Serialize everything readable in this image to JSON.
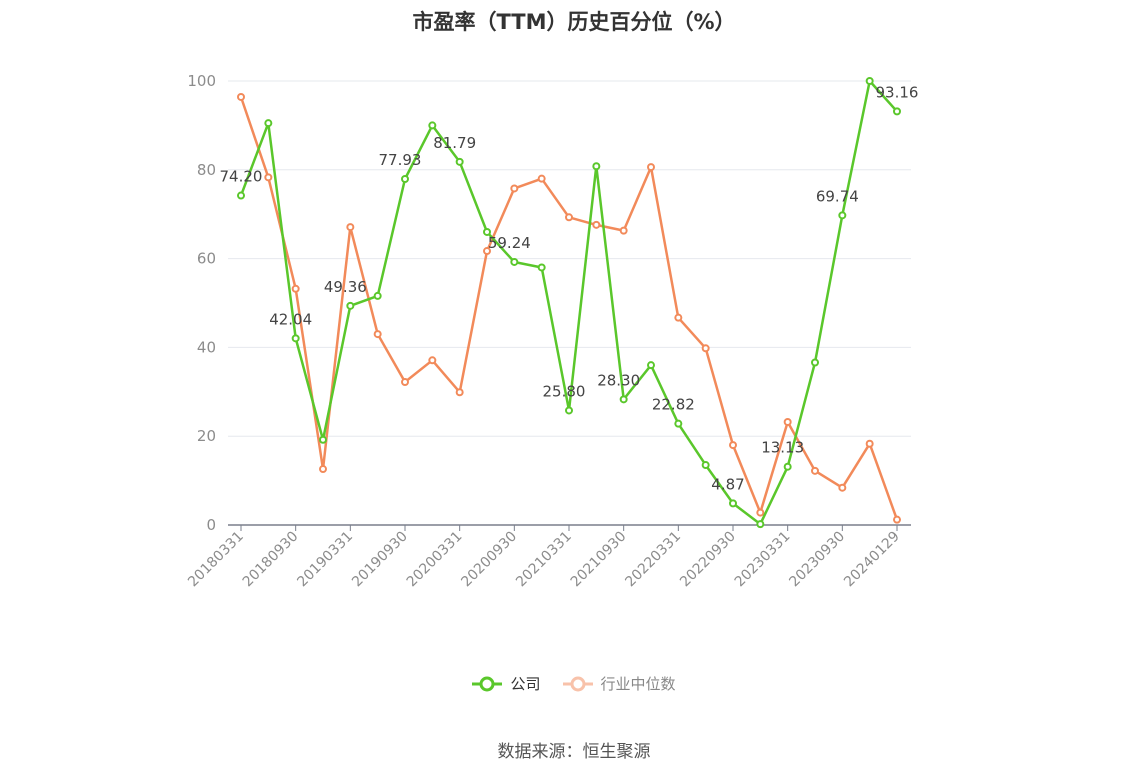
{
  "colors": {
    "company": "#5ac72b",
    "industry": "#f28a5a",
    "grid": "#e6e8ee",
    "axis": "#7a7f8c",
    "tick_text": "#8c8c8c",
    "label_text": "#444444"
  },
  "legend": {
    "company": "公司",
    "industry": "行业中位数"
  },
  "source": "数据来源：恒生聚源",
  "chart_data": {
    "type": "line",
    "title": "市盈率（TTM）历史百分位（%）",
    "xlabel": "",
    "ylabel": "",
    "ylim": [
      0,
      100
    ],
    "yticks": [
      0,
      20,
      40,
      60,
      80,
      100
    ],
    "grid": true,
    "legend_position": "bottom",
    "x": [
      "20180331",
      "20180630",
      "20180930",
      "20181231",
      "20190331",
      "20190630",
      "20190930",
      "20191231",
      "20200331",
      "20200630",
      "20200930",
      "20201231",
      "20210331",
      "20210630",
      "20210930",
      "20211231",
      "20220331",
      "20220630",
      "20220930",
      "20221231",
      "20230331",
      "20230630",
      "20230930",
      "20231231",
      "20240129"
    ],
    "xtick_labels": [
      "20180331",
      "20180930",
      "20190331",
      "20190930",
      "20200331",
      "20200930",
      "20210331",
      "20210930",
      "20220331",
      "20220930",
      "20230331",
      "20230930",
      "20240129"
    ],
    "series": [
      {
        "name": "公司",
        "values": [
          74.2,
          90.5,
          42.04,
          19.2,
          49.36,
          51.6,
          77.93,
          90.0,
          81.79,
          66.0,
          59.24,
          58.0,
          25.8,
          80.8,
          28.3,
          36.0,
          22.82,
          13.5,
          4.87,
          0.2,
          13.13,
          36.6,
          69.74,
          100.0,
          93.16
        ],
        "labels": [
          "74.20",
          "",
          "42.04",
          "",
          "49.36",
          "",
          "77.93",
          "",
          "81.79",
          "",
          "59.24",
          "",
          "25.80",
          "",
          "28.30",
          "",
          "22.82",
          "",
          "4.87",
          "",
          "13.13",
          "",
          "69.74",
          "",
          "93.16"
        ]
      },
      {
        "name": "行业中位数",
        "values": [
          96.4,
          78.3,
          53.2,
          12.6,
          67.1,
          43.0,
          32.2,
          37.1,
          29.9,
          61.7,
          75.8,
          78.0,
          69.3,
          67.6,
          66.3,
          80.6,
          46.7,
          39.8,
          18.0,
          2.8,
          23.2,
          12.2,
          8.4,
          18.3,
          1.2
        ]
      }
    ]
  }
}
